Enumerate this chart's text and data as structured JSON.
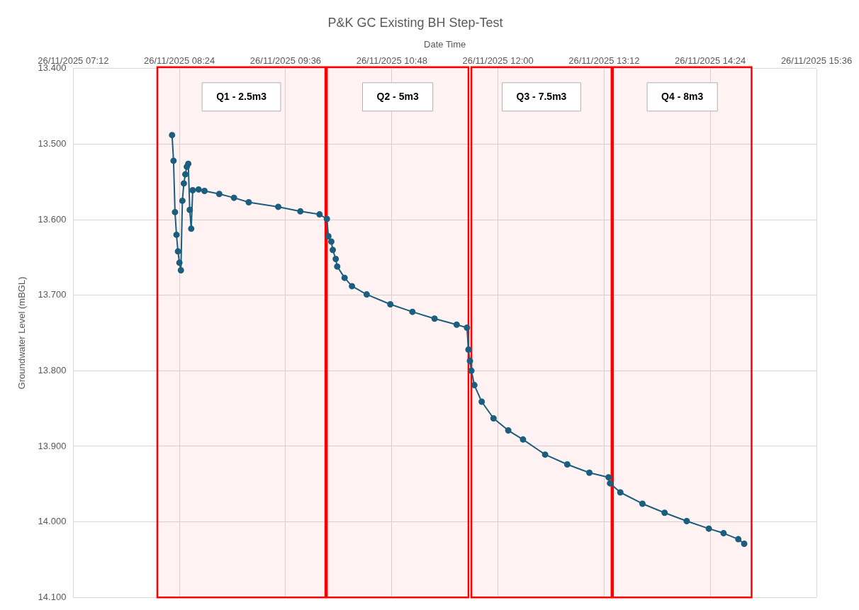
{
  "chart_data": {
    "type": "line",
    "title": "P&K GC Existing BH Step-Test",
    "xlabel": "Date Time",
    "ylabel": "Groundwater Level (mBGL)",
    "x": [
      "2025-11-26T08:19",
      "2025-11-26T08:20",
      "2025-11-26T08:21",
      "2025-11-26T08:22",
      "2025-11-26T08:23",
      "2025-11-26T08:24",
      "2025-11-26T08:25",
      "2025-11-26T08:26",
      "2025-11-26T08:27",
      "2025-11-26T08:28",
      "2025-11-26T08:29",
      "2025-11-26T08:30",
      "2025-11-26T08:31",
      "2025-11-26T08:32",
      "2025-11-26T08:33",
      "2025-11-26T08:37",
      "2025-11-26T08:41",
      "2025-11-26T08:51",
      "2025-11-26T09:01",
      "2025-11-26T09:11",
      "2025-11-26T09:31",
      "2025-11-26T09:46",
      "2025-11-26T09:59",
      "2025-11-26T10:04",
      "2025-11-26T10:05",
      "2025-11-26T10:07",
      "2025-11-26T10:08",
      "2025-11-26T10:10",
      "2025-11-26T10:11",
      "2025-11-26T10:16",
      "2025-11-26T10:21",
      "2025-11-26T10:31",
      "2025-11-26T10:47",
      "2025-11-26T11:02",
      "2025-11-26T11:17",
      "2025-11-26T11:32",
      "2025-11-26T11:39",
      "2025-11-26T11:40",
      "2025-11-26T11:41",
      "2025-11-26T11:42",
      "2025-11-26T11:44",
      "2025-11-26T11:49",
      "2025-11-26T11:57",
      "2025-11-26T12:07",
      "2025-11-26T12:17",
      "2025-11-26T12:32",
      "2025-11-26T12:47",
      "2025-11-26T13:02",
      "2025-11-26T13:15",
      "2025-11-26T13:16",
      "2025-11-26T13:23",
      "2025-11-26T13:38",
      "2025-11-26T13:53",
      "2025-11-26T14:08",
      "2025-11-26T14:23",
      "2025-11-26T14:33",
      "2025-11-26T14:43",
      "2025-11-26T14:47"
    ],
    "series": [
      {
        "color": "#1b5e7e",
        "values": [
          13.488,
          13.522,
          13.59,
          13.62,
          13.642,
          13.657,
          13.667,
          13.575,
          13.552,
          13.54,
          13.53,
          13.526,
          13.587,
          13.612,
          13.561,
          13.56,
          13.562,
          13.566,
          13.571,
          13.577,
          13.583,
          13.589,
          13.593,
          13.599,
          13.622,
          13.629,
          13.64,
          13.652,
          13.662,
          13.677,
          13.688,
          13.699,
          13.712,
          13.722,
          13.731,
          13.739,
          13.743,
          13.772,
          13.787,
          13.8,
          13.819,
          13.841,
          13.863,
          13.879,
          13.891,
          13.911,
          13.924,
          13.935,
          13.941,
          13.949,
          13.961,
          13.976,
          13.988,
          13.999,
          14.009,
          14.015,
          14.023,
          14.029
        ]
      }
    ],
    "xlim": [
      "2025-11-26T07:12",
      "2025-11-26T15:36"
    ],
    "xticks": [
      {
        "value": "2025-11-26T07:12",
        "label": "26/11/2025 07:12"
      },
      {
        "value": "2025-11-26T08:24",
        "label": "26/11/2025 08:24"
      },
      {
        "value": "2025-11-26T09:36",
        "label": "26/11/2025 09:36"
      },
      {
        "value": "2025-11-26T10:48",
        "label": "26/11/2025 10:48"
      },
      {
        "value": "2025-11-26T12:00",
        "label": "26/11/2025 12:00"
      },
      {
        "value": "2025-11-26T13:12",
        "label": "26/11/2025 13:12"
      },
      {
        "value": "2025-11-26T14:24",
        "label": "26/11/2025 14:24"
      },
      {
        "value": "2025-11-26T15:36",
        "label": "26/11/2025 15:36"
      }
    ],
    "ylim": [
      14.1,
      13.4
    ],
    "yticks": [
      {
        "value": 13.4,
        "label": "13.400"
      },
      {
        "value": 13.5,
        "label": "13.500"
      },
      {
        "value": 13.6,
        "label": "13.600"
      },
      {
        "value": 13.7,
        "label": "13.700"
      },
      {
        "value": 13.8,
        "label": "13.800"
      },
      {
        "value": 13.9,
        "label": "13.900"
      },
      {
        "value": 14.0,
        "label": "14.000"
      },
      {
        "value": 14.1,
        "label": "14.100"
      }
    ],
    "bands": [
      {
        "axis": "x",
        "from": "2025-11-26T08:09",
        "to": "2025-11-26T10:03",
        "label": "Q1 - 2.5m3",
        "color": "#ff0000"
      },
      {
        "axis": "x",
        "from": "2025-11-26T10:04",
        "to": "2025-11-26T11:40",
        "label": "Q2 - 5m3",
        "color": "#ff0000"
      },
      {
        "axis": "x",
        "from": "2025-11-26T11:42",
        "to": "2025-11-26T13:17",
        "label": "Q3 - 7.5m3",
        "color": "#ff0000"
      },
      {
        "axis": "x",
        "from": "2025-11-26T13:18",
        "to": "2025-11-26T14:52",
        "label": "Q4 - 8m3",
        "color": "#ff0000"
      }
    ],
    "grid": true,
    "legend": false,
    "marker": "circle",
    "line_style": "solid"
  }
}
